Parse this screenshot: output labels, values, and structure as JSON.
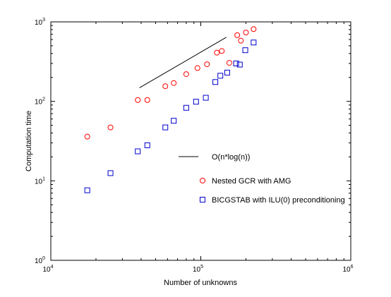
{
  "chart_data": {
    "type": "scatter",
    "title": "",
    "xlabel": "Number of unknowns",
    "ylabel": "Computation time",
    "xscale": "log",
    "yscale": "log",
    "xlim": [
      10000,
      1000000
    ],
    "ylim": [
      1,
      1000
    ],
    "grid": false,
    "legend_position": "lower-right",
    "x_ticks": [
      {
        "base": "10",
        "exp": "4",
        "value": 10000
      },
      {
        "base": "10",
        "exp": "5",
        "value": 100000
      },
      {
        "base": "10",
        "exp": "6",
        "value": 1000000
      }
    ],
    "y_ticks": [
      {
        "base": "10",
        "exp": "0",
        "value": 1
      },
      {
        "base": "10",
        "exp": "1",
        "value": 10
      },
      {
        "base": "10",
        "exp": "2",
        "value": 100
      },
      {
        "base": "10",
        "exp": "3",
        "value": 1000
      }
    ],
    "reference_line": {
      "name": "O(n*log(n))",
      "color": "#000000",
      "x": [
        39000,
        148000
      ],
      "y": [
        148,
        640
      ]
    },
    "series": [
      {
        "name": "Nested GCR with AMG",
        "marker": "circle",
        "color": "#ff0000",
        "x": [
          17500,
          25000,
          38000,
          44000,
          58000,
          66000,
          80000,
          95000,
          110000,
          128000,
          138000,
          155000,
          175000,
          185000,
          200000,
          225000
        ],
        "y": [
          36,
          47,
          104,
          104,
          155,
          170,
          220,
          262,
          293,
          410,
          430,
          305,
          680,
          580,
          735,
          810
        ]
      },
      {
        "name": "BICGSTAB with ILU(0) preconditioning",
        "marker": "square",
        "color": "#0000cc",
        "x": [
          17500,
          25000,
          38000,
          44000,
          58000,
          66000,
          80000,
          93000,
          108000,
          125000,
          135000,
          150000,
          172000,
          182000,
          198000,
          225000
        ],
        "y": [
          7.6,
          12.5,
          23.5,
          28,
          47,
          57,
          83,
          99,
          111,
          175,
          210,
          230,
          300,
          290,
          440,
          550
        ]
      }
    ]
  }
}
